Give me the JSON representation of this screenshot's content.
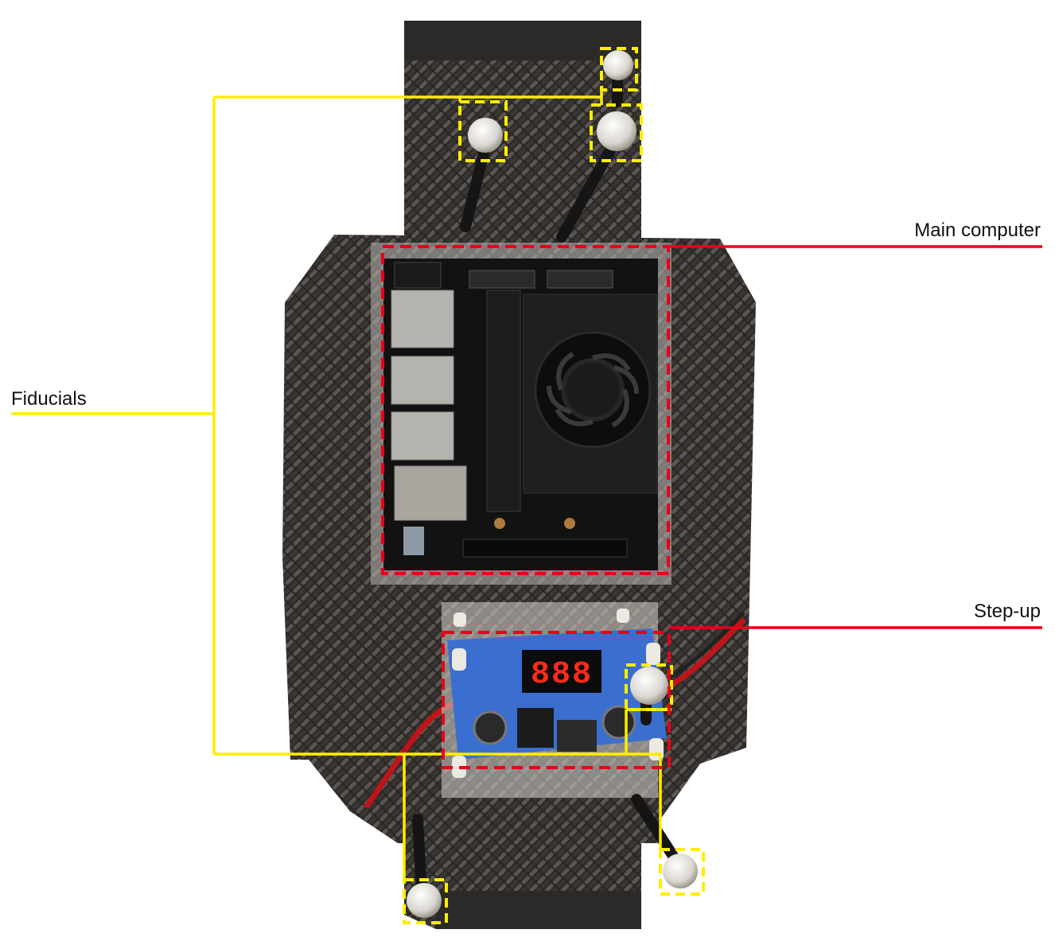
{
  "labels": {
    "fiducials": "Fiducials",
    "main_computer": "Main computer",
    "step_up": "Step-up"
  },
  "display": {
    "digits": "888"
  },
  "colors": {
    "fiducial_box": "#ffee00",
    "component_box": "#e8001a",
    "carbon_fiber": "#2b2826",
    "board": "#141414",
    "stepup_pcb": "#3a6fd0",
    "led_digits": "#ff2a1a"
  },
  "icons": {
    "fan": "fan-icon",
    "fiducial_marker": "fiducial-ball-icon"
  }
}
